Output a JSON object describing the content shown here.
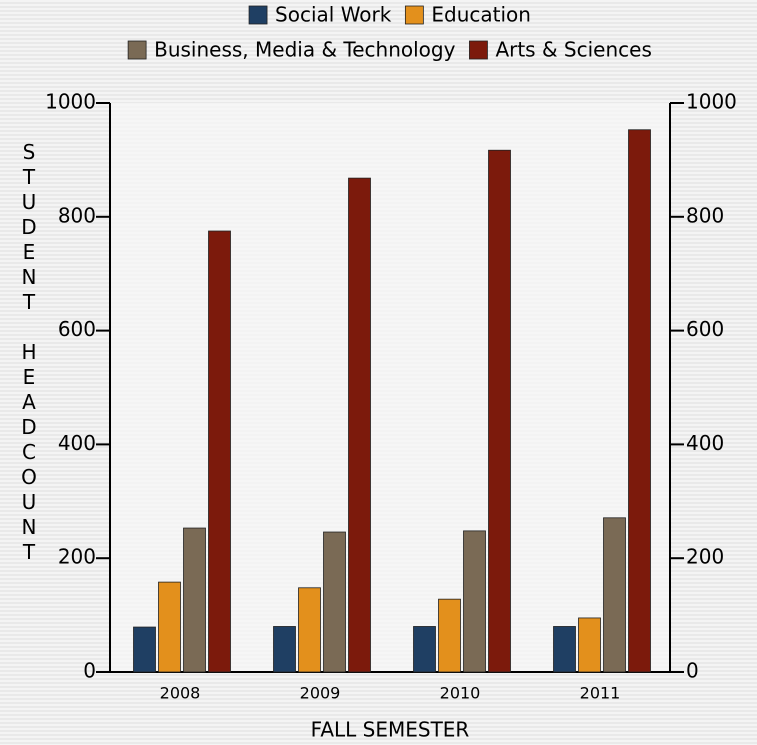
{
  "chart_data": {
    "type": "bar",
    "x_label": "FALL SEMESTER",
    "y_label": "STUDENT HEADCOUNT",
    "categories": [
      "2008",
      "2009",
      "2010",
      "2011"
    ],
    "series": [
      {
        "name": "Social Work",
        "color": "#1f3f63",
        "values": [
          79,
          80,
          80,
          80
        ]
      },
      {
        "name": "Education",
        "color": "#e3901c",
        "values": [
          158,
          148,
          128,
          95
        ]
      },
      {
        "name": "Business, Media & Technology",
        "color": "#7a6a55",
        "values": [
          253,
          246,
          248,
          271
        ]
      },
      {
        "name": "Arts & Sciences",
        "color": "#7c1a0c",
        "values": [
          775,
          868,
          917,
          953
        ]
      }
    ],
    "ylim": [
      0,
      1000
    ],
    "yticks": [
      0,
      200,
      400,
      600,
      800,
      1000
    ],
    "y2lim": [
      0,
      1000
    ],
    "y2ticks": [
      0,
      200,
      400,
      600,
      800,
      1000
    ]
  }
}
